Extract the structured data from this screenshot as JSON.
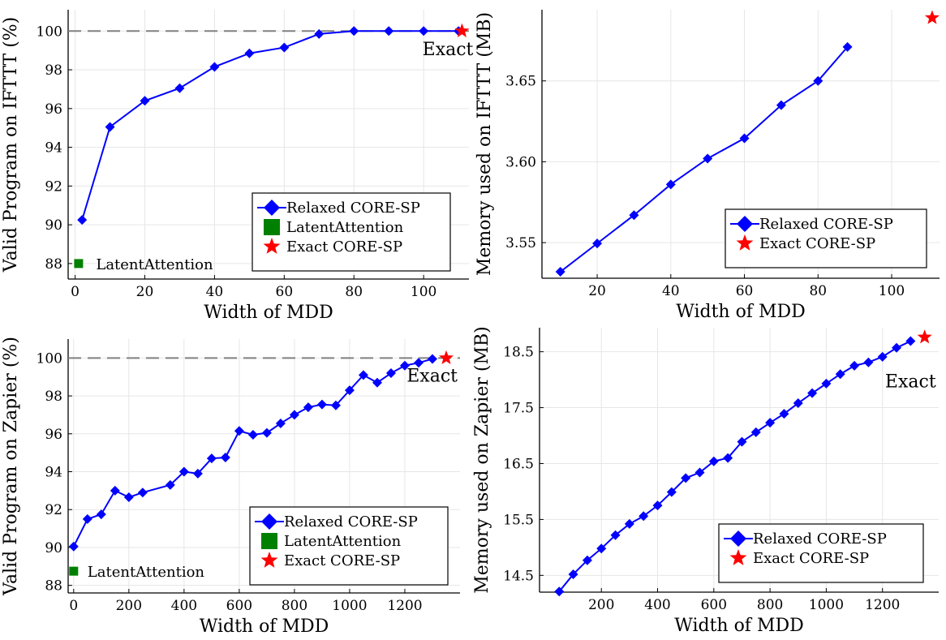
{
  "chart_data": [
    {
      "type": "line",
      "xlabel": "Width of MDD",
      "ylabel": "Valid Program on IFTTT (%)",
      "xlim": [
        -2,
        113
      ],
      "ylim": [
        87.2,
        101.1
      ],
      "xticks": [
        0,
        20,
        40,
        60,
        80,
        100
      ],
      "yticks": [
        88,
        90,
        92,
        94,
        96,
        98,
        100
      ],
      "grid": true,
      "legend_position": "bottom-right",
      "reference_line": {
        "y": 100,
        "style": "dashed",
        "color": "#808080"
      },
      "series": [
        {
          "name": "Relaxed CORE-SP",
          "color": "#0000ff",
          "marker": "diamond",
          "x": [
            2,
            10,
            20,
            30,
            40,
            50,
            60,
            70,
            80,
            90,
            100,
            110
          ],
          "y": [
            90.25,
            95.05,
            96.4,
            97.05,
            98.15,
            98.85,
            99.15,
            99.85,
            100,
            100,
            100,
            100
          ]
        },
        {
          "name": "LatentAttention",
          "color": "#008000",
          "marker": "square",
          "x": [
            1
          ],
          "y": [
            88.0
          ]
        },
        {
          "name": "Exact CORE-SP",
          "color": "#ff0000",
          "marker": "star",
          "x": [
            111
          ],
          "y": [
            100
          ]
        }
      ],
      "annotations": [
        {
          "text": "Exact",
          "x": 111,
          "y": 99.1
        },
        {
          "text": "LatentAttention",
          "x": 6,
          "y": 88.0
        }
      ]
    },
    {
      "type": "line",
      "xlabel": "Width of MDD",
      "ylabel": "Memory used on IFTTT (MB)",
      "xlim": [
        5,
        113
      ],
      "ylim": [
        3.528,
        3.694
      ],
      "xticks": [
        20,
        40,
        60,
        80,
        100
      ],
      "yticks": [
        3.55,
        3.6,
        3.65
      ],
      "ytick_labels": [
        "3.55",
        "3.60",
        "3.65"
      ],
      "grid": true,
      "legend_position": "bottom-right",
      "series": [
        {
          "name": "Relaxed CORE-SP",
          "color": "#0000ff",
          "marker": "diamond",
          "x": [
            10,
            20,
            30,
            40,
            50,
            60,
            70,
            80,
            88
          ],
          "y": [
            3.532,
            3.5495,
            3.567,
            3.586,
            3.602,
            3.6145,
            3.635,
            3.65,
            3.671
          ]
        },
        {
          "name": "Exact CORE-SP",
          "color": "#ff0000",
          "marker": "star",
          "x": [
            111
          ],
          "y": [
            3.689
          ]
        }
      ]
    },
    {
      "type": "line",
      "xlabel": "Width of MDD",
      "ylabel": "Valid Program on Zapier (%)",
      "xlim": [
        -20,
        1400
      ],
      "ylim": [
        87.6,
        101.0
      ],
      "xticks": [
        0,
        200,
        400,
        600,
        800,
        1000,
        1200
      ],
      "yticks": [
        88,
        90,
        92,
        94,
        96,
        98,
        100
      ],
      "grid": true,
      "legend_position": "bottom-right",
      "reference_line": {
        "y": 100,
        "style": "dashed",
        "color": "#808080"
      },
      "series": [
        {
          "name": "Relaxed CORE-SP",
          "color": "#0000ff",
          "marker": "diamond",
          "x": [
            0,
            50,
            100,
            150,
            200,
            250,
            350,
            400,
            450,
            500,
            550,
            600,
            650,
            700,
            750,
            800,
            850,
            900,
            950,
            1000,
            1050,
            1100,
            1150,
            1200,
            1250,
            1300
          ],
          "y": [
            90.05,
            91.5,
            91.75,
            93.0,
            92.65,
            92.9,
            93.3,
            94.0,
            93.9,
            94.7,
            94.75,
            96.15,
            95.95,
            96.05,
            96.55,
            97.0,
            97.4,
            97.55,
            97.5,
            98.3,
            99.1,
            98.7,
            99.2,
            99.6,
            99.75,
            99.95
          ]
        },
        {
          "name": "LatentAttention",
          "color": "#008000",
          "marker": "square",
          "x": [
            0
          ],
          "y": [
            88.75
          ]
        },
        {
          "name": "Exact CORE-SP",
          "color": "#ff0000",
          "marker": "star",
          "x": [
            1350
          ],
          "y": [
            100
          ]
        }
      ],
      "annotations": [
        {
          "text": "Exact",
          "x": 1350,
          "y": 99.1
        },
        {
          "text": "LatentAttention",
          "x": 50,
          "y": 88.75
        }
      ]
    },
    {
      "type": "line",
      "xlabel": "Width of MDD",
      "ylabel": "Memory used on Zapier (MB)",
      "xlim": [
        -20,
        1400
      ],
      "ylim": [
        14.2,
        18.93
      ],
      "xticks": [
        200,
        400,
        600,
        800,
        1000,
        1200
      ],
      "yticks": [
        14.5,
        15.5,
        16.5,
        17.5,
        18.5
      ],
      "grid": true,
      "legend_position": "bottom-right",
      "series": [
        {
          "name": "Relaxed CORE-SP",
          "color": "#0000ff",
          "marker": "diamond",
          "x": [
            50,
            100,
            150,
            200,
            250,
            300,
            350,
            400,
            450,
            500,
            550,
            600,
            650,
            700,
            750,
            800,
            850,
            900,
            950,
            1000,
            1050,
            1100,
            1150,
            1200,
            1250,
            1300
          ],
          "y": [
            14.21,
            14.52,
            14.77,
            14.98,
            15.22,
            15.42,
            15.56,
            15.75,
            15.99,
            16.24,
            16.34,
            16.54,
            16.6,
            16.89,
            17.06,
            17.23,
            17.39,
            17.58,
            17.76,
            17.93,
            18.1,
            18.25,
            18.31,
            18.41,
            18.57,
            18.69
          ]
        },
        {
          "name": "Exact CORE-SP",
          "color": "#ff0000",
          "marker": "star",
          "x": [
            1350
          ],
          "y": [
            18.76
          ]
        }
      ],
      "annotations": [
        {
          "text": "Exact",
          "x": 1350,
          "y": 17.98
        }
      ]
    }
  ]
}
